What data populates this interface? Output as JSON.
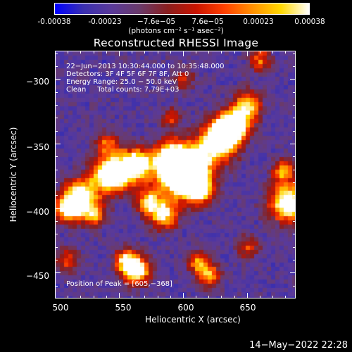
{
  "colorbar": {
    "ticks": [
      "-0.00038",
      "-0.00023",
      "−7.6e−05",
      "7.6e−05",
      "0.00023",
      "0.00038"
    ],
    "units": "(photons cm⁻² s⁻¹ asec⁻²)"
  },
  "title": "Reconstructed RHESSI Image",
  "info": {
    "time_range": "22−Jun−2013 10:30:44.000 to 10:35:48.000",
    "detectors": "Detectors: 3F 4F 5F 6F 7F 8F, Att 0",
    "energy_range": "Energy Range: 25.0 − 50.0 keV",
    "algorithm": "Clean     Total counts: 7.79E+03",
    "peak": "Position of Peak = [605,−368]"
  },
  "axes": {
    "xlabel": "Heliocentric X (arcsec)",
    "ylabel": "Heliocentric Y (arcsec)",
    "xticks": [
      "500",
      "550",
      "600",
      "650"
    ],
    "yticks": [
      "−300",
      "−350",
      "−400",
      "−450"
    ]
  },
  "image": {
    "x_range": [
      500,
      688
    ],
    "y_range": [
      -470,
      -278
    ],
    "peak_position": [
      605,
      -368
    ],
    "colormap": [
      "#0000ff",
      "#3a2fb0",
      "#5a3a9a",
      "#6a3a6a",
      "#8a1e1e",
      "#c81400",
      "#ff4000",
      "#ff9000",
      "#ffd800",
      "#ffffff"
    ]
  },
  "footer": {
    "timestamp": "14−May−2022 22:28"
  }
}
